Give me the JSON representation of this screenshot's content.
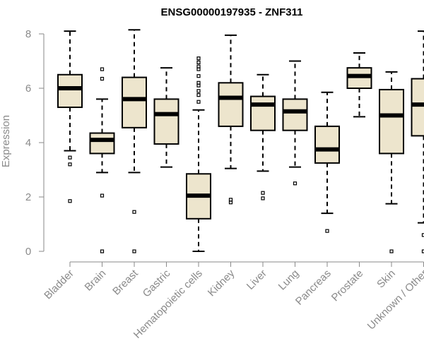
{
  "chart_data": {
    "type": "box",
    "title": "ENSG00000197935 - ZNF311",
    "xlabel": "",
    "ylabel": "Expression",
    "ylim": [
      0,
      8.1
    ],
    "yticks": [
      0,
      2,
      4,
      6,
      8
    ],
    "box_fill": "#ede5cd",
    "categories": [
      "Bladder",
      "Brain",
      "Breast",
      "Gastric",
      "Hematopoietic cells",
      "Kidney",
      "Liver",
      "Lung",
      "Pancreas",
      "Prostate",
      "Skin",
      "Unknown / Other"
    ],
    "boxes": [
      {
        "min": 3.7,
        "q1": 5.3,
        "median": 6.0,
        "q3": 6.5,
        "max": 8.1,
        "outliers": [
          1.85,
          3.2,
          3.45
        ]
      },
      {
        "min": 2.9,
        "q1": 3.6,
        "median": 4.1,
        "q3": 4.35,
        "max": 5.6,
        "outliers": [
          0.0,
          2.05,
          6.35,
          6.7
        ]
      },
      {
        "min": 2.9,
        "q1": 4.55,
        "median": 5.6,
        "q3": 6.4,
        "max": 8.15,
        "outliers": [
          0.0,
          1.45
        ]
      },
      {
        "min": 3.1,
        "q1": 3.95,
        "median": 5.05,
        "q3": 5.6,
        "max": 6.75,
        "outliers": []
      },
      {
        "min": 0.0,
        "q1": 1.2,
        "median": 2.05,
        "q3": 2.85,
        "max": 5.2,
        "outliers": [
          5.5,
          5.75,
          5.9,
          6.1,
          6.2,
          6.45,
          6.7,
          6.8,
          6.95,
          7.1
        ]
      },
      {
        "min": 3.05,
        "q1": 4.6,
        "median": 5.65,
        "q3": 6.2,
        "max": 7.95,
        "outliers": [
          1.8,
          1.9
        ]
      },
      {
        "min": 2.95,
        "q1": 4.45,
        "median": 5.4,
        "q3": 5.7,
        "max": 6.5,
        "outliers": [
          1.95,
          2.15
        ]
      },
      {
        "min": 3.1,
        "q1": 4.45,
        "median": 5.15,
        "q3": 5.6,
        "max": 7.0,
        "outliers": [
          2.5
        ]
      },
      {
        "min": 1.4,
        "q1": 3.25,
        "median": 3.75,
        "q3": 4.6,
        "max": 5.85,
        "outliers": [
          0.75
        ]
      },
      {
        "min": 4.95,
        "q1": 6.0,
        "median": 6.45,
        "q3": 6.75,
        "max": 7.3,
        "outliers": []
      },
      {
        "min": 1.75,
        "q1": 3.6,
        "median": 5.0,
        "q3": 5.95,
        "max": 6.6,
        "outliers": [
          0.0
        ]
      },
      {
        "min": 1.05,
        "q1": 4.25,
        "median": 5.4,
        "q3": 6.35,
        "max": 8.1,
        "outliers": [
          0.0,
          0.6
        ]
      }
    ]
  }
}
